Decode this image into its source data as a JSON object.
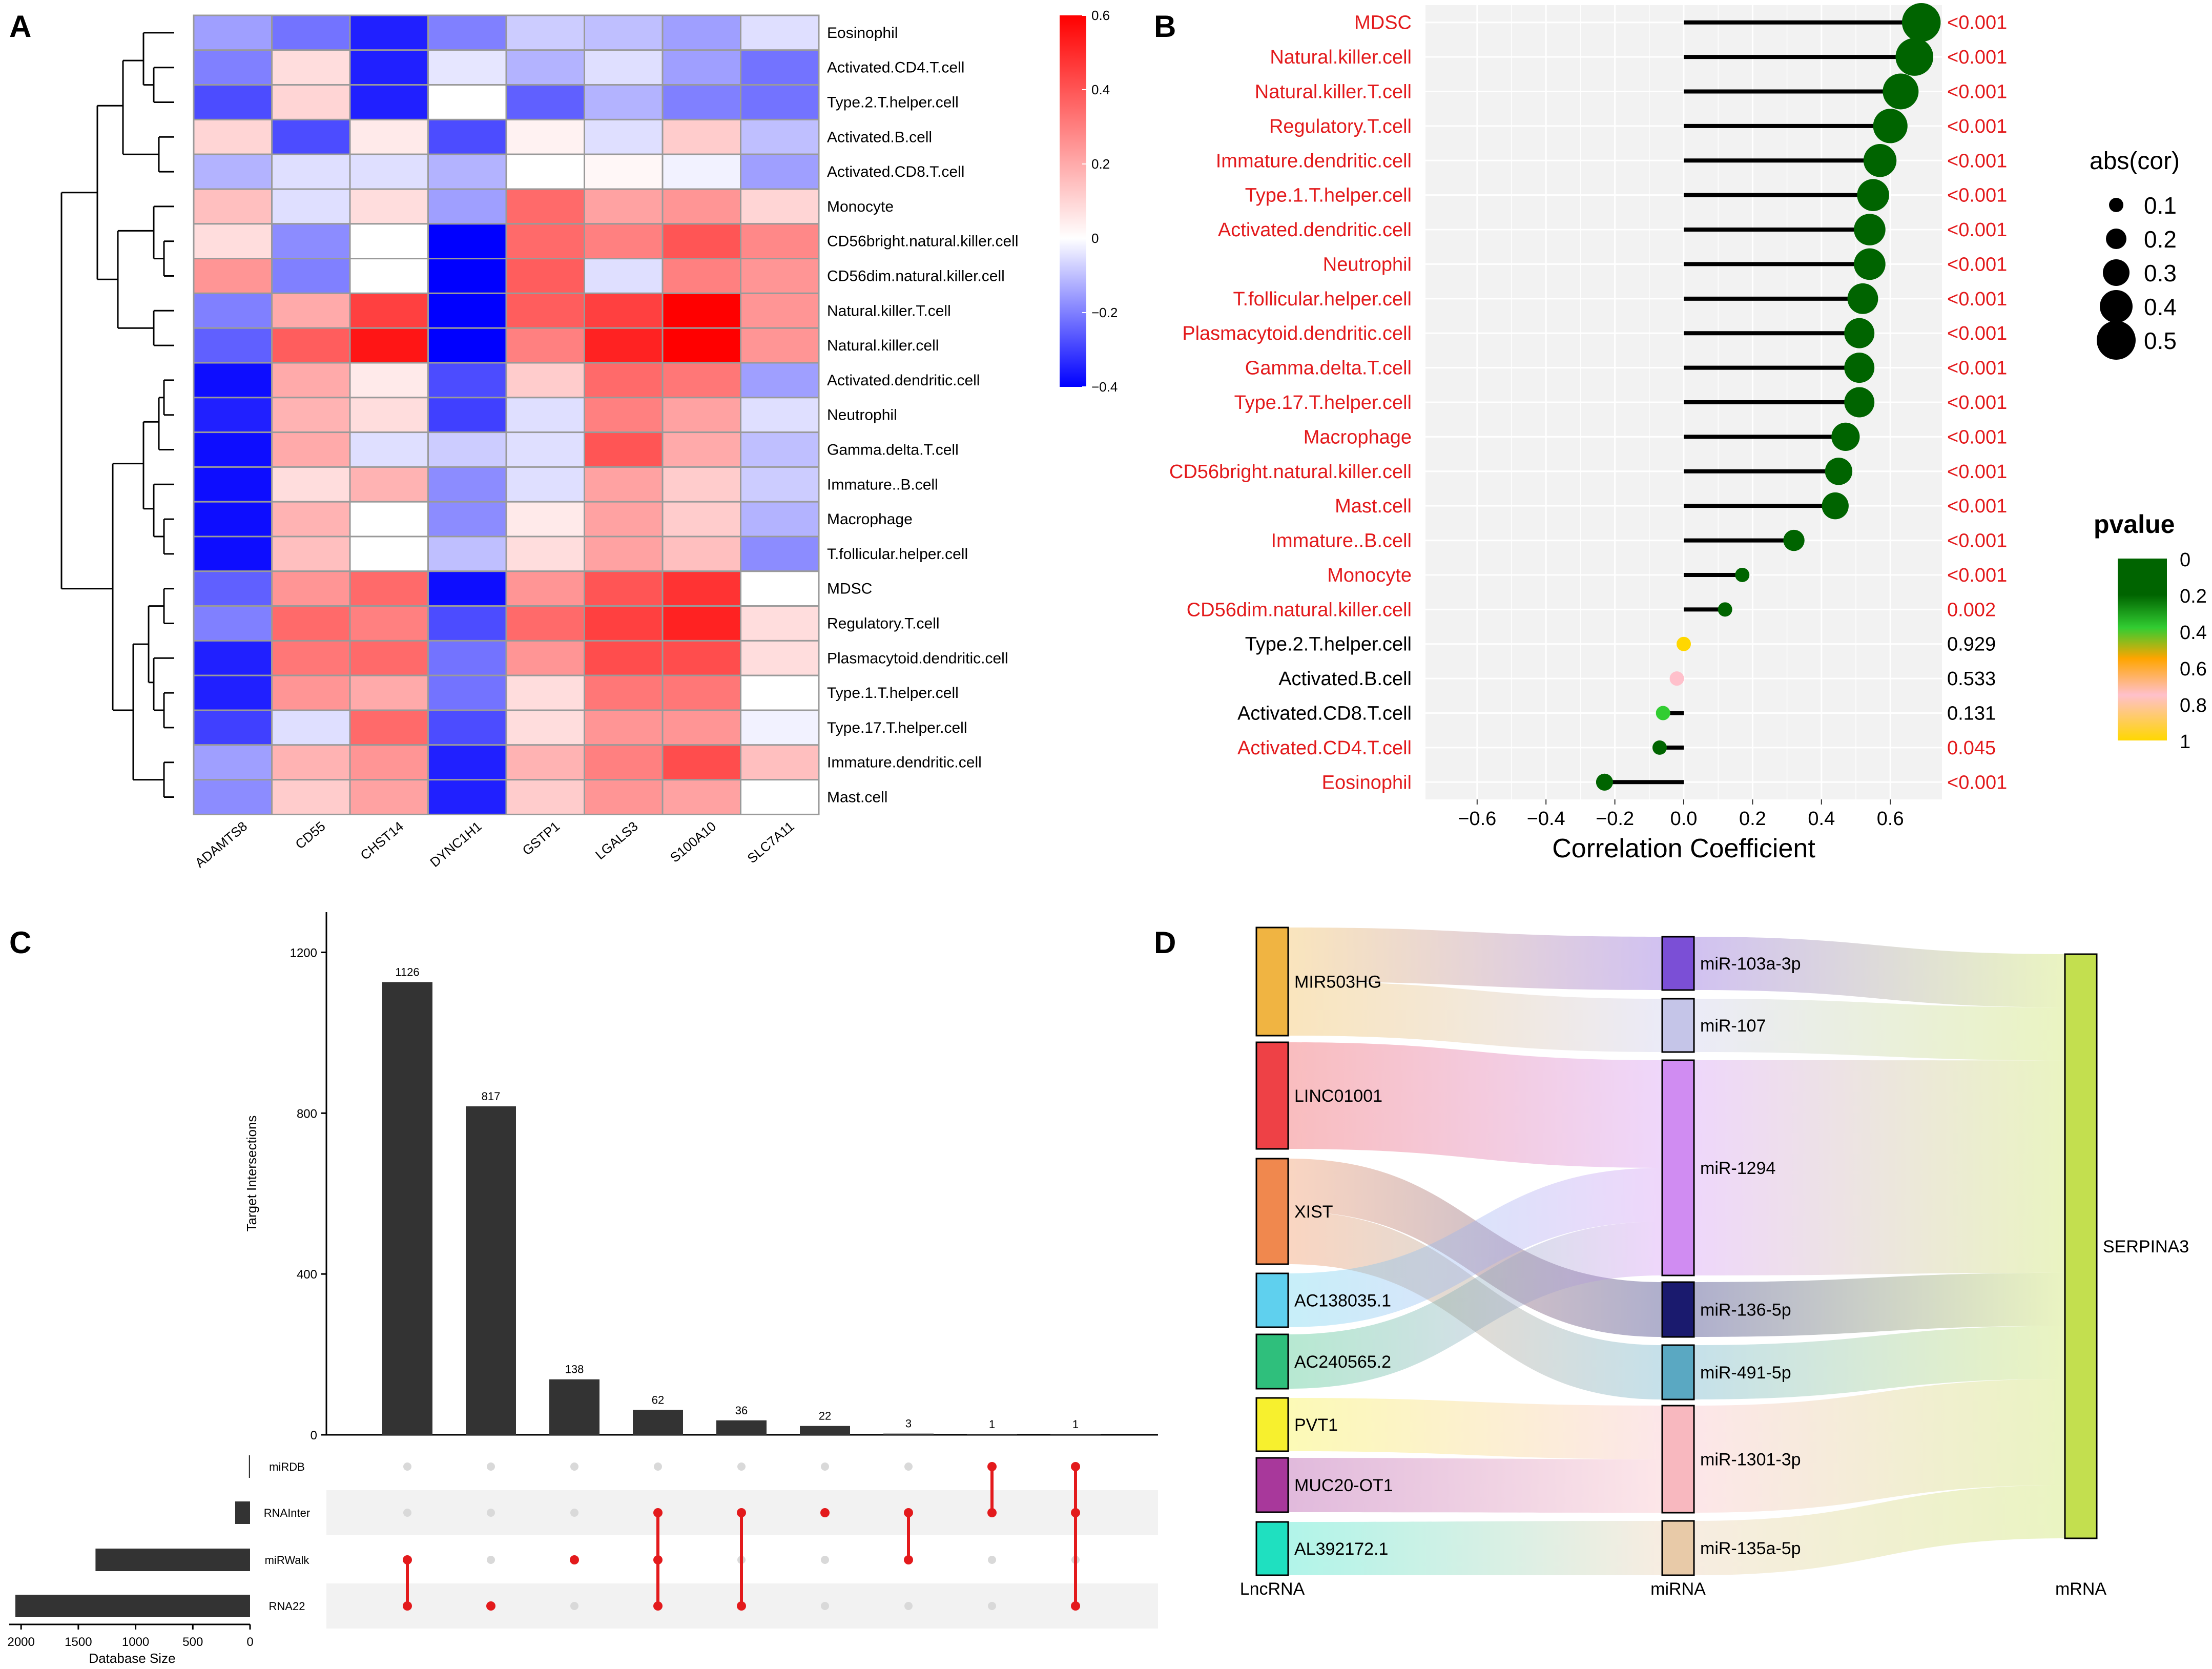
{
  "panel_labels": [
    "A",
    "B",
    "C",
    "D"
  ],
  "colors": {
    "hm_low": "#0000ff",
    "hm_mid": "#ffffff",
    "hm_high": "#ff0000",
    "sig_text": "#e31a1c",
    "nonsig_text": "#000000",
    "p_0": "#006400",
    "p_02": "#32cd32",
    "p_04": "#ffa500",
    "p_06": "#ffc0cb",
    "p_08": "#ffd700",
    "bar": "#333333",
    "upset_dot_on": "#e31a1c",
    "upset_dot_off": "#d9d9d9",
    "stem": "#000000",
    "panel_bg": "#f2f2f2"
  },
  "chart_data": [
    {
      "id": "A",
      "type": "heatmap",
      "title": "",
      "columns": [
        "ADAMTS8",
        "CD55",
        "CHST14",
        "DYNC1H1",
        "GSTP1",
        "LGALS3",
        "S100A10",
        "SLC7A11"
      ],
      "rows": [
        "Eosinophil",
        "Activated.CD4.T.cell",
        "Type.2.T.helper.cell",
        "Activated.B.cell",
        "Activated.CD8.T.cell",
        "Monocyte",
        "CD56bright.natural.killer.cell",
        "CD56dim.natural.killer.cell",
        "Natural.killer.T.cell",
        "Natural.killer.cell",
        "Activated.dendritic.cell",
        "Neutrophil",
        "Gamma.delta.T.cell",
        "Immature..B.cell",
        "Macrophage",
        "T.follicular.helper.cell",
        "MDSC",
        "Regulatory.T.cell",
        "Plasmacytoid.dendritic.cell",
        "Type.1.T.helper.cell",
        "Type.17.T.helper.cell",
        "Immature.dendritic.cell",
        "Mast.cell"
      ],
      "values": [
        [
          -0.15,
          -0.22,
          -0.35,
          -0.2,
          -0.08,
          -0.1,
          -0.15,
          -0.05
        ],
        [
          -0.2,
          0.08,
          -0.35,
          -0.04,
          -0.12,
          -0.05,
          -0.15,
          -0.22
        ],
        [
          -0.28,
          0.1,
          -0.35,
          0.0,
          -0.25,
          -0.12,
          -0.2,
          -0.22
        ],
        [
          0.1,
          -0.28,
          0.05,
          -0.28,
          0.03,
          -0.05,
          0.12,
          -0.1
        ],
        [
          -0.12,
          -0.05,
          -0.05,
          -0.12,
          0.0,
          0.02,
          -0.02,
          -0.15
        ],
        [
          0.15,
          -0.05,
          0.08,
          -0.15,
          0.35,
          0.22,
          0.25,
          0.1
        ],
        [
          0.08,
          -0.18,
          0.0,
          -0.4,
          0.35,
          0.3,
          0.4,
          0.28
        ],
        [
          0.25,
          -0.2,
          0.0,
          -0.4,
          0.38,
          -0.05,
          0.3,
          0.25
        ],
        [
          -0.2,
          0.2,
          0.45,
          -0.4,
          0.38,
          0.45,
          0.6,
          0.25
        ],
        [
          -0.25,
          0.38,
          0.55,
          -0.4,
          0.3,
          0.52,
          0.6,
          0.25
        ],
        [
          -0.38,
          0.2,
          0.05,
          -0.28,
          0.12,
          0.35,
          0.32,
          -0.15
        ],
        [
          -0.35,
          0.18,
          0.08,
          -0.3,
          -0.05,
          0.3,
          0.22,
          -0.05
        ],
        [
          -0.38,
          0.2,
          -0.05,
          -0.08,
          -0.05,
          0.4,
          0.2,
          -0.1
        ],
        [
          -0.38,
          0.08,
          0.18,
          -0.18,
          -0.05,
          0.22,
          0.12,
          -0.08
        ],
        [
          -0.38,
          0.18,
          0.0,
          -0.18,
          0.05,
          0.22,
          0.12,
          -0.12
        ],
        [
          -0.38,
          0.15,
          0.0,
          -0.1,
          0.08,
          0.22,
          0.15,
          -0.18
        ],
        [
          -0.25,
          0.25,
          0.35,
          -0.38,
          0.25,
          0.4,
          0.48,
          0.0
        ],
        [
          -0.2,
          0.35,
          0.3,
          -0.28,
          0.35,
          0.45,
          0.52,
          0.08
        ],
        [
          -0.35,
          0.32,
          0.35,
          -0.22,
          0.25,
          0.42,
          0.42,
          0.08
        ],
        [
          -0.35,
          0.25,
          0.2,
          -0.22,
          0.08,
          0.32,
          0.32,
          0.0
        ],
        [
          -0.3,
          -0.05,
          0.35,
          -0.28,
          0.08,
          0.25,
          0.25,
          -0.02
        ],
        [
          -0.15,
          0.18,
          0.25,
          -0.35,
          0.18,
          0.3,
          0.42,
          0.15
        ],
        [
          -0.18,
          0.12,
          0.22,
          -0.35,
          0.12,
          0.25,
          0.22,
          0.0
        ]
      ],
      "color_scale": {
        "min": -0.4,
        "max": 0.6,
        "ticks": [
          0.6,
          0.4,
          0.2,
          0,
          -0.2,
          -0.4
        ],
        "tick_labels": [
          "0.6",
          "0.4",
          "0.2",
          "0",
          "−0.2",
          "−0.4"
        ]
      },
      "dendrogram": "rows"
    },
    {
      "id": "B",
      "type": "scatter",
      "subtype": "lollipop",
      "categories": [
        "MDSC",
        "Natural.killer.cell",
        "Natural.killer.T.cell",
        "Regulatory.T.cell",
        "Immature.dendritic.cell",
        "Type.1.T.helper.cell",
        "Activated.dendritic.cell",
        "Neutrophil",
        "T.follicular.helper.cell",
        "Plasmacytoid.dendritic.cell",
        "Gamma.delta.T.cell",
        "Type.17.T.helper.cell",
        "Macrophage",
        "CD56bright.natural.killer.cell",
        "Mast.cell",
        "Immature..B.cell",
        "Monocyte",
        "CD56dim.natural.killer.cell",
        "Type.2.T.helper.cell",
        "Activated.B.cell",
        "Activated.CD8.T.cell",
        "Activated.CD4.T.cell",
        "Eosinophil"
      ],
      "values": [
        0.69,
        0.67,
        0.63,
        0.6,
        0.57,
        0.55,
        0.54,
        0.54,
        0.52,
        0.51,
        0.51,
        0.51,
        0.47,
        0.45,
        0.44,
        0.32,
        0.17,
        0.12,
        0.0,
        -0.02,
        -0.06,
        -0.07,
        -0.23
      ],
      "pvalues": [
        0,
        0,
        0,
        0,
        0,
        0,
        0,
        0,
        0,
        0,
        0,
        0,
        0,
        0,
        0,
        0,
        0,
        0.002,
        0.929,
        0.533,
        0.131,
        0.045,
        0
      ],
      "pvalue_labels": [
        "<0.001",
        "<0.001",
        "<0.001",
        "<0.001",
        "<0.001",
        "<0.001",
        "<0.001",
        "<0.001",
        "<0.001",
        "<0.001",
        "<0.001",
        "<0.001",
        "<0.001",
        "<0.001",
        "<0.001",
        "<0.001",
        "<0.001",
        "0.002",
        "0.929",
        "0.533",
        "0.131",
        "0.045",
        "<0.001"
      ],
      "xlabel": "Correlation Coefficient",
      "xlim": [
        -0.75,
        0.75
      ],
      "xticks": [
        -0.6,
        -0.4,
        -0.2,
        0.0,
        0.2,
        0.4,
        0.6
      ],
      "xtick_labels": [
        "−0.6",
        "−0.4",
        "−0.2",
        "0.0",
        "0.2",
        "0.4",
        "0.6"
      ],
      "size_legend": {
        "title": "abs(cor)",
        "values": [
          0.1,
          0.2,
          0.3,
          0.4,
          0.5
        ],
        "labels": [
          "0.1",
          "0.2",
          "0.3",
          "0.4",
          "0.5"
        ]
      },
      "color_legend": {
        "title": "pvalue",
        "labels": [
          "0",
          "0.2",
          "0.4",
          "0.6",
          "0.8",
          "1"
        ]
      }
    },
    {
      "id": "C",
      "type": "bar",
      "subtype": "upset",
      "ylabel": "Target Intersections",
      "ylim": [
        0,
        1300
      ],
      "yticks": [
        0,
        400,
        800,
        1200
      ],
      "ytick_labels": [
        "0",
        "400",
        "800",
        "1200"
      ],
      "sets": [
        "miRDB",
        "RNAInter",
        "miRWalk",
        "RNA22"
      ],
      "set_sizes": [
        10,
        130,
        1350,
        2050
      ],
      "set_size_label": "Database Size",
      "set_size_ticks": [
        2000,
        1500,
        1000,
        500,
        0
      ],
      "set_size_tick_labels": [
        "2000",
        "1500",
        "1000",
        "500",
        "0"
      ],
      "intersections": [
        {
          "value": 1126,
          "label": "1126",
          "members": [
            2,
            3
          ]
        },
        {
          "value": 817,
          "label": "817",
          "members": [
            3
          ]
        },
        {
          "value": 138,
          "label": "138",
          "members": [
            2
          ]
        },
        {
          "value": 62,
          "label": "62",
          "members": [
            1,
            2,
            3
          ]
        },
        {
          "value": 36,
          "label": "36",
          "members": [
            1,
            3
          ]
        },
        {
          "value": 22,
          "label": "22",
          "members": [
            1
          ]
        },
        {
          "value": 3,
          "label": "3",
          "members": [
            1,
            2
          ]
        },
        {
          "value": 1,
          "label": "1",
          "members": [
            0,
            1
          ]
        },
        {
          "value": 1,
          "label": "1",
          "members": [
            0,
            1,
            3
          ]
        }
      ]
    },
    {
      "id": "D",
      "type": "sankey",
      "columns": [
        "LncRNA",
        "miRNA",
        "mRNA"
      ],
      "lnc_nodes": [
        {
          "name": "MIR503HG",
          "color": "#f0b442"
        },
        {
          "name": "LINC01001",
          "color": "#ee4146"
        },
        {
          "name": "XIST",
          "color": "#f0884e"
        },
        {
          "name": "AC138035.1",
          "color": "#5fd0ee"
        },
        {
          "name": "AC240565.2",
          "color": "#2fbf7c"
        },
        {
          "name": "PVT1",
          "color": "#f7f02e"
        },
        {
          "name": "MUC20-OT1",
          "color": "#a8389b"
        },
        {
          "name": "AL392172.1",
          "color": "#1fe0c0"
        }
      ],
      "mi_nodes": [
        {
          "name": "miR-103a-3p",
          "color": "#7b4fd6"
        },
        {
          "name": "miR-107",
          "color": "#c5c5e8"
        },
        {
          "name": "miR-1294",
          "color": "#d08cf2"
        },
        {
          "name": "miR-136-5p",
          "color": "#1a1a6e"
        },
        {
          "name": "miR-491-5p",
          "color": "#5aa8c2"
        },
        {
          "name": "miR-1301-3p",
          "color": "#f8b8bf"
        },
        {
          "name": "miR-135a-5p",
          "color": "#e8caa8"
        }
      ],
      "m_nodes": [
        {
          "name": "SERPINA3",
          "color": "#c3df4f"
        }
      ],
      "links": [
        {
          "source": "MIR503HG",
          "target": "miR-103a-3p",
          "value": 1
        },
        {
          "source": "MIR503HG",
          "target": "miR-107",
          "value": 1
        },
        {
          "source": "LINC01001",
          "target": "miR-1294",
          "value": 2
        },
        {
          "source": "XIST",
          "target": "miR-136-5p",
          "value": 1
        },
        {
          "source": "XIST",
          "target": "miR-491-5p",
          "value": 1
        },
        {
          "source": "AC138035.1",
          "target": "miR-1294",
          "value": 1
        },
        {
          "source": "AC240565.2",
          "target": "miR-1294",
          "value": 1
        },
        {
          "source": "PVT1",
          "target": "miR-1301-3p",
          "value": 1
        },
        {
          "source": "MUC20-OT1",
          "target": "miR-1301-3p",
          "value": 1
        },
        {
          "source": "AL392172.1",
          "target": "miR-135a-5p",
          "value": 1
        },
        {
          "source": "miR-103a-3p",
          "target": "SERPINA3",
          "value": 1
        },
        {
          "source": "miR-107",
          "target": "SERPINA3",
          "value": 1
        },
        {
          "source": "miR-1294",
          "target": "SERPINA3",
          "value": 4
        },
        {
          "source": "miR-136-5p",
          "target": "SERPINA3",
          "value": 1
        },
        {
          "source": "miR-491-5p",
          "target": "SERPINA3",
          "value": 1
        },
        {
          "source": "miR-1301-3p",
          "target": "SERPINA3",
          "value": 2
        },
        {
          "source": "miR-135a-5p",
          "target": "SERPINA3",
          "value": 1
        }
      ]
    }
  ]
}
